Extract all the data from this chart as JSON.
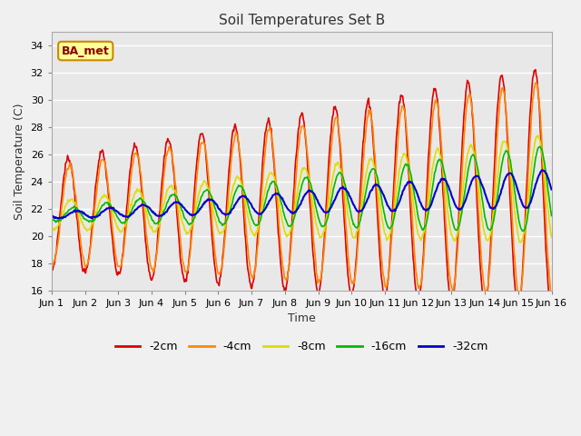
{
  "title": "Soil Temperatures Set B",
  "xlabel": "Time",
  "ylabel": "Soil Temperature (C)",
  "ylim": [
    16,
    35
  ],
  "xlim": [
    0,
    15
  ],
  "yticks": [
    16,
    18,
    20,
    22,
    24,
    26,
    28,
    30,
    32,
    34
  ],
  "xtick_labels": [
    "Jun 1",
    "Jun 2",
    "Jun 3",
    "Jun 4",
    "Jun 5",
    "Jun 6",
    "Jun 7",
    "Jun 8",
    "Jun 9",
    "Jun 10",
    "Jun 11",
    "Jun 12",
    "Jun 13",
    "Jun 14",
    "Jun 15",
    "Jun 16"
  ],
  "fig_bg": "#f0f0f0",
  "plot_bg": "#e8e8e8",
  "grid_color": "#ffffff",
  "annotation_text": "BA_met",
  "annotation_fg": "#8b0000",
  "annotation_bg": "#ffff99",
  "annotation_border": "#cc8800",
  "legend_labels": [
    "-2cm",
    "-4cm",
    "-8cm",
    "-16cm",
    "-32cm"
  ],
  "line_colors": [
    "#dd0000",
    "#ff8800",
    "#dddd00",
    "#00bb00",
    "#0000cc"
  ],
  "line_widths": [
    1.2,
    1.2,
    1.2,
    1.2,
    1.5
  ],
  "figsize": [
    6.4,
    4.8
  ],
  "dpi": 100
}
